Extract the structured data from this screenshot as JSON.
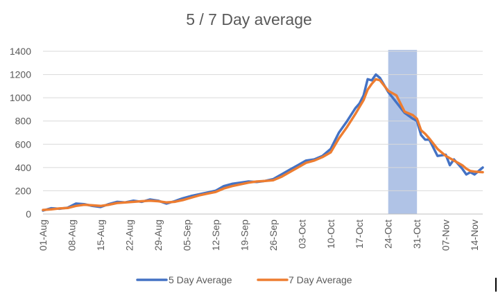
{
  "chart_data": {
    "type": "line",
    "title": "5 / 7 Day average",
    "xlabel": "",
    "ylabel": "",
    "ylim": [
      0,
      1400
    ],
    "yticks": [
      0,
      200,
      400,
      600,
      800,
      1000,
      1200,
      1400
    ],
    "x_range": [
      "01-Aug",
      "16-Nov"
    ],
    "x_ticks": [
      "01-Aug",
      "08-Aug",
      "15-Aug",
      "22-Aug",
      "29-Aug",
      "05-Sep",
      "12-Sep",
      "19-Sep",
      "26-Sep",
      "03-Oct",
      "10-Oct",
      "17-Oct",
      "24-Oct",
      "31-Oct",
      "07-Nov",
      "14-Nov"
    ],
    "grid": "horizontal",
    "legend_position": "bottom",
    "highlight": {
      "from": "24-Oct",
      "to": "31-Oct",
      "color": "#8EA9DB"
    },
    "series": [
      {
        "name": "5 Day Average",
        "color": "#4472C4",
        "x": [
          "01-Aug",
          "03-Aug",
          "05-Aug",
          "07-Aug",
          "09-Aug",
          "11-Aug",
          "13-Aug",
          "15-Aug",
          "17-Aug",
          "19-Aug",
          "21-Aug",
          "23-Aug",
          "25-Aug",
          "27-Aug",
          "29-Aug",
          "31-Aug",
          "02-Sep",
          "04-Sep",
          "06-Sep",
          "08-Sep",
          "10-Sep",
          "12-Sep",
          "14-Sep",
          "16-Sep",
          "18-Sep",
          "20-Sep",
          "22-Sep",
          "24-Sep",
          "26-Sep",
          "28-Sep",
          "30-Sep",
          "02-Oct",
          "04-Oct",
          "06-Oct",
          "08-Oct",
          "10-Oct",
          "12-Oct",
          "14-Oct",
          "16-Oct",
          "17-Oct",
          "18-Oct",
          "19-Oct",
          "20-Oct",
          "21-Oct",
          "22-Oct",
          "24-Oct",
          "26-Oct",
          "28-Oct",
          "30-Oct",
          "31-Oct",
          "01-Nov",
          "02-Nov",
          "03-Nov",
          "05-Nov",
          "07-Nov",
          "08-Nov",
          "09-Nov",
          "11-Nov",
          "12-Nov",
          "13-Nov",
          "14-Nov",
          "16-Nov"
        ],
        "values": [
          30,
          50,
          45,
          55,
          90,
          85,
          70,
          60,
          85,
          105,
          100,
          115,
          105,
          125,
          115,
          90,
          110,
          135,
          155,
          170,
          185,
          200,
          240,
          260,
          270,
          280,
          275,
          285,
          300,
          340,
          380,
          420,
          460,
          470,
          500,
          560,
          700,
          800,
          910,
          950,
          1020,
          1160,
          1150,
          1200,
          1170,
          1050,
          960,
          870,
          820,
          800,
          680,
          640,
          640,
          500,
          510,
          420,
          470,
          390,
          340,
          360,
          340,
          400
        ]
      },
      {
        "name": "7 Day Average",
        "color": "#ED7D31",
        "x": [
          "01-Aug",
          "03-Aug",
          "05-Aug",
          "07-Aug",
          "09-Aug",
          "11-Aug",
          "13-Aug",
          "15-Aug",
          "17-Aug",
          "19-Aug",
          "21-Aug",
          "23-Aug",
          "25-Aug",
          "27-Aug",
          "29-Aug",
          "31-Aug",
          "02-Sep",
          "04-Sep",
          "06-Sep",
          "08-Sep",
          "10-Sep",
          "12-Sep",
          "14-Sep",
          "16-Sep",
          "18-Sep",
          "20-Sep",
          "22-Sep",
          "24-Sep",
          "26-Sep",
          "28-Sep",
          "30-Sep",
          "02-Oct",
          "04-Oct",
          "06-Oct",
          "08-Oct",
          "10-Oct",
          "12-Oct",
          "14-Oct",
          "16-Oct",
          "17-Oct",
          "18-Oct",
          "19-Oct",
          "20-Oct",
          "21-Oct",
          "22-Oct",
          "24-Oct",
          "26-Oct",
          "28-Oct",
          "30-Oct",
          "31-Oct",
          "01-Nov",
          "02-Nov",
          "03-Nov",
          "05-Nov",
          "07-Nov",
          "08-Nov",
          "09-Nov",
          "11-Nov",
          "12-Nov",
          "13-Nov",
          "14-Nov",
          "16-Nov"
        ],
        "values": [
          35,
          40,
          48,
          52,
          70,
          80,
          75,
          70,
          80,
          95,
          100,
          105,
          110,
          115,
          110,
          100,
          105,
          120,
          140,
          160,
          175,
          190,
          220,
          240,
          255,
          270,
          280,
          285,
          290,
          320,
          360,
          400,
          440,
          460,
          490,
          530,
          650,
          750,
          860,
          920,
          980,
          1070,
          1120,
          1160,
          1150,
          1060,
          1020,
          880,
          850,
          820,
          720,
          690,
          650,
          560,
          500,
          480,
          460,
          420,
          390,
          370,
          365,
          360
        ]
      }
    ]
  }
}
